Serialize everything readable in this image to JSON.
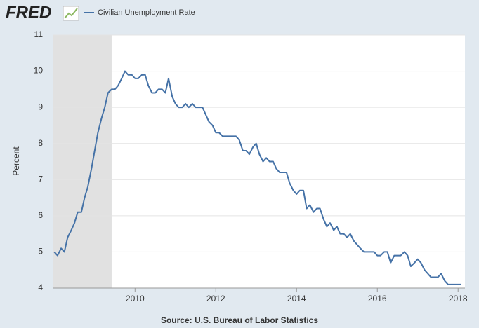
{
  "logo": "FRED",
  "chart_data": {
    "type": "line",
    "ylabel": "Percent",
    "source": "Source: U.S. Bureau of Labor Statistics",
    "xlim": [
      2007.96,
      2018.17
    ],
    "ylim": [
      4,
      11
    ],
    "xticks": [
      2010,
      2012,
      2014,
      2016,
      2018
    ],
    "yticks": [
      4,
      5,
      6,
      7,
      8,
      9,
      10,
      11
    ],
    "grid": true,
    "shaded_ranges": [
      [
        2007.96,
        2009.42
      ]
    ],
    "shade_color": "#e1e1e1",
    "x": [
      2008.0,
      2008.08,
      2008.17,
      2008.25,
      2008.33,
      2008.42,
      2008.5,
      2008.58,
      2008.67,
      2008.75,
      2008.83,
      2008.92,
      2009.0,
      2009.08,
      2009.17,
      2009.25,
      2009.33,
      2009.42,
      2009.5,
      2009.58,
      2009.67,
      2009.75,
      2009.83,
      2009.92,
      2010.0,
      2010.08,
      2010.17,
      2010.25,
      2010.33,
      2010.42,
      2010.5,
      2010.58,
      2010.67,
      2010.75,
      2010.83,
      2010.92,
      2011.0,
      2011.08,
      2011.17,
      2011.25,
      2011.33,
      2011.42,
      2011.5,
      2011.58,
      2011.67,
      2011.75,
      2011.83,
      2011.92,
      2012.0,
      2012.08,
      2012.17,
      2012.25,
      2012.33,
      2012.42,
      2012.5,
      2012.58,
      2012.67,
      2012.75,
      2012.83,
      2012.92,
      2013.0,
      2013.08,
      2013.17,
      2013.25,
      2013.33,
      2013.42,
      2013.5,
      2013.58,
      2013.67,
      2013.75,
      2013.83,
      2013.92,
      2014.0,
      2014.08,
      2014.17,
      2014.25,
      2014.33,
      2014.42,
      2014.5,
      2014.58,
      2014.67,
      2014.75,
      2014.83,
      2014.92,
      2015.0,
      2015.08,
      2015.17,
      2015.25,
      2015.33,
      2015.42,
      2015.5,
      2015.58,
      2015.67,
      2015.75,
      2015.83,
      2015.92,
      2016.0,
      2016.08,
      2016.17,
      2016.25,
      2016.33,
      2016.42,
      2016.5,
      2016.58,
      2016.67,
      2016.75,
      2016.83,
      2016.92,
      2017.0,
      2017.08,
      2017.17,
      2017.25,
      2017.33,
      2017.42,
      2017.5,
      2017.58,
      2017.67,
      2017.75,
      2017.83,
      2017.92,
      2018.0,
      2018.08
    ],
    "series": [
      {
        "name": "Civilian Unemployment Rate",
        "color": "#4572a7",
        "values": [
          5.0,
          4.9,
          5.1,
          5.0,
          5.4,
          5.6,
          5.8,
          6.1,
          6.1,
          6.5,
          6.8,
          7.3,
          7.8,
          8.3,
          8.7,
          9.0,
          9.4,
          9.5,
          9.5,
          9.6,
          9.8,
          10.0,
          9.9,
          9.9,
          9.8,
          9.8,
          9.9,
          9.9,
          9.6,
          9.4,
          9.4,
          9.5,
          9.5,
          9.4,
          9.8,
          9.3,
          9.1,
          9.0,
          9.0,
          9.1,
          9.0,
          9.1,
          9.0,
          9.0,
          9.0,
          8.8,
          8.6,
          8.5,
          8.3,
          8.3,
          8.2,
          8.2,
          8.2,
          8.2,
          8.2,
          8.1,
          7.8,
          7.8,
          7.7,
          7.9,
          8.0,
          7.7,
          7.5,
          7.6,
          7.5,
          7.5,
          7.3,
          7.2,
          7.2,
          7.2,
          6.9,
          6.7,
          6.6,
          6.7,
          6.7,
          6.2,
          6.3,
          6.1,
          6.2,
          6.2,
          5.9,
          5.7,
          5.8,
          5.6,
          5.7,
          5.5,
          5.5,
          5.4,
          5.5,
          5.3,
          5.2,
          5.1,
          5.0,
          5.0,
          5.0,
          5.0,
          4.9,
          4.9,
          5.0,
          5.0,
          4.7,
          4.9,
          4.9,
          4.9,
          5.0,
          4.9,
          4.6,
          4.7,
          4.8,
          4.7,
          4.5,
          4.4,
          4.3,
          4.3,
          4.3,
          4.4,
          4.2,
          4.1,
          4.1,
          4.1,
          4.1,
          4.1
        ]
      }
    ]
  }
}
